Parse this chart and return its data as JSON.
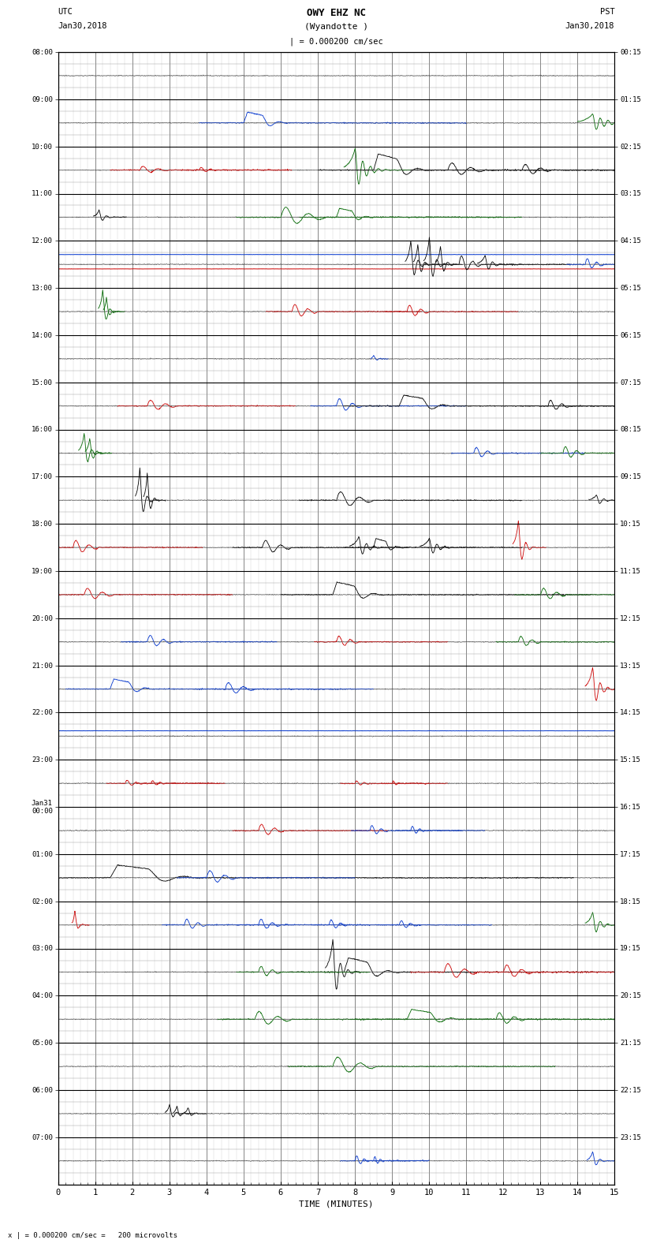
{
  "title_line1": "OWY EHZ NC",
  "title_line2": "(Wyandotte )",
  "scale_label": "| = 0.000200 cm/sec",
  "bottom_label": "x | = 0.000200 cm/sec =   200 microvolts",
  "utc_label": "UTC",
  "utc_date": "Jan30,2018",
  "pst_label": "PST",
  "pst_date": "Jan30,2018",
  "xlabel": "TIME (MINUTES)",
  "left_times": [
    "08:00",
    "09:00",
    "10:00",
    "11:00",
    "12:00",
    "13:00",
    "14:00",
    "15:00",
    "16:00",
    "17:00",
    "18:00",
    "19:00",
    "20:00",
    "21:00",
    "22:00",
    "23:00",
    "Jan31\n00:00",
    "01:00",
    "02:00",
    "03:00",
    "04:00",
    "05:00",
    "06:00",
    "07:00"
  ],
  "right_times": [
    "00:15",
    "01:15",
    "02:15",
    "03:15",
    "04:15",
    "05:15",
    "06:15",
    "07:15",
    "08:15",
    "09:15",
    "10:15",
    "11:15",
    "12:15",
    "13:15",
    "14:15",
    "15:15",
    "16:15",
    "17:15",
    "18:15",
    "19:15",
    "20:15",
    "21:15",
    "22:15",
    "23:15"
  ],
  "n_rows": 24,
  "n_minutes": 15,
  "subrows_per_row": 4,
  "bg_color": "#ffffff",
  "major_grid_color": "#000000",
  "minor_grid_color": "#888888",
  "trace_color_default": "#000000"
}
